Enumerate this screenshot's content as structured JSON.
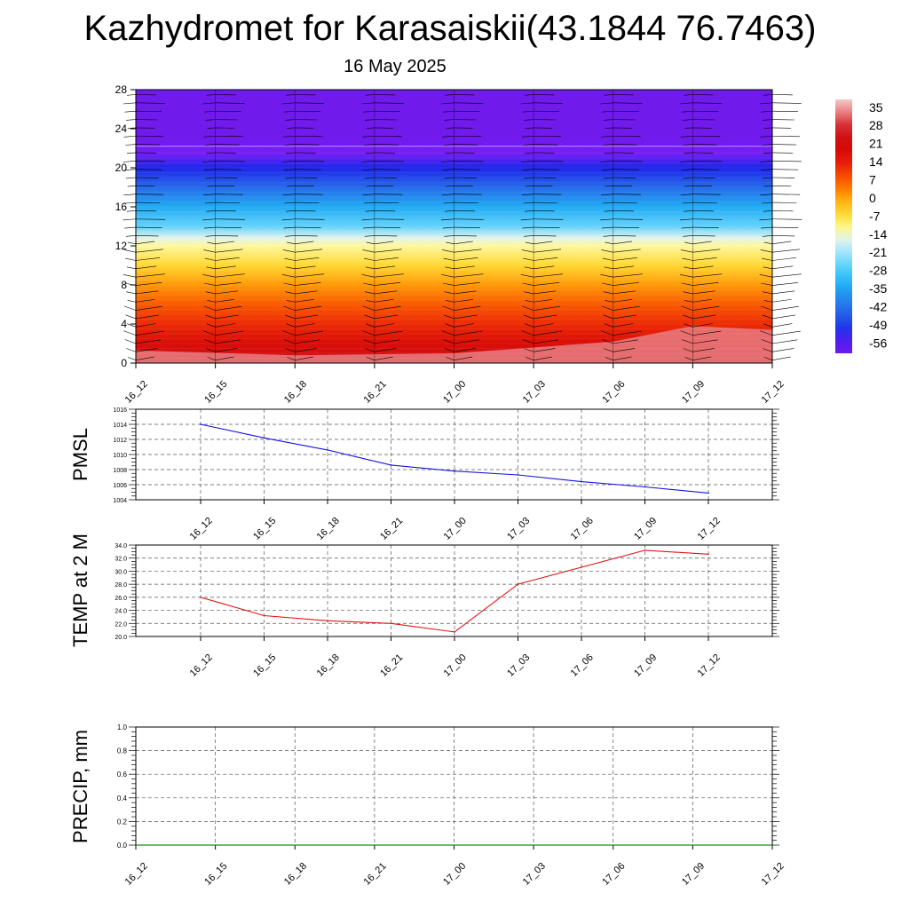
{
  "header": {
    "title": "Kazhydromet for Karasaiskii(43.1844 76.7463)",
    "subtitle": "16 May 2025"
  },
  "chart_data": [
    {
      "type": "heatmap",
      "title": "Kazhydromet for Karasaiskii(43.1844 76.7463)",
      "subtitle": "16 May 2025",
      "x_ticks": [
        "16_12",
        "16_15",
        "16_18",
        "16_21",
        "17_00",
        "17_03",
        "17_06",
        "17_09",
        "17_12"
      ],
      "y_ticks": [
        "0",
        "4",
        "8",
        "12",
        "16",
        "20",
        "24",
        "28"
      ],
      "ylim": [
        0,
        28
      ],
      "colorbar_labels": [
        "35",
        "28",
        "21",
        "14",
        "7",
        "0",
        "-7",
        "-14",
        "-21",
        "-28",
        "-35",
        "-42",
        "-49",
        "-56"
      ],
      "colorbar_range": [
        -60,
        38
      ],
      "overlay": "wind barbs",
      "temperature_profile": [
        {
          "z": 0,
          "t": 25
        },
        {
          "z": 2,
          "t": 18
        },
        {
          "z": 4,
          "t": 12
        },
        {
          "z": 6,
          "t": 7
        },
        {
          "z": 8,
          "t": 1
        },
        {
          "z": 10,
          "t": -6
        },
        {
          "z": 12,
          "t": -12
        },
        {
          "z": 12.8,
          "t": -16
        },
        {
          "z": 14,
          "t": -26
        },
        {
          "z": 16,
          "t": -34
        },
        {
          "z": 18,
          "t": -43
        },
        {
          "z": 20,
          "t": -52
        },
        {
          "z": 21.5,
          "t": -57
        },
        {
          "z": 23,
          "t": -60
        },
        {
          "z": 28,
          "t": -60
        }
      ],
      "surface_warm_layer": [
        {
          "time": "16_12",
          "top": 1.3,
          "t": 29
        },
        {
          "time": "16_18",
          "top": 0.8,
          "t": 27
        },
        {
          "time": "17_00",
          "top": 1.0,
          "t": 27
        },
        {
          "time": "17_06",
          "top": 2.2,
          "t": 30
        },
        {
          "time": "17_09",
          "top": 3.8,
          "t": 33
        },
        {
          "time": "17_12",
          "top": 3.4,
          "t": 33
        }
      ]
    },
    {
      "type": "line",
      "ylabel": "PMSL",
      "x": [
        "16_12",
        "16_15",
        "16_18",
        "16_21",
        "17_00",
        "17_03",
        "17_06",
        "17_09",
        "17_12"
      ],
      "y_ticks": [
        "1004",
        "1006",
        "1008",
        "1010",
        "1012",
        "1014",
        "1016"
      ],
      "ylim": [
        1004,
        1016
      ],
      "grid": true,
      "series": [
        {
          "color": "#1515e0",
          "values": [
            1014.0,
            1012.2,
            1010.6,
            1008.6,
            1007.8,
            1007.3,
            1006.4,
            1005.7,
            1004.9
          ]
        }
      ]
    },
    {
      "type": "line",
      "ylabel": "TEMP at 2 M",
      "x": [
        "16_12",
        "16_15",
        "16_18",
        "16_21",
        "17_00",
        "17_03",
        "17_06",
        "17_09",
        "17_12"
      ],
      "y_ticks": [
        "20.0",
        "22.0",
        "24.0",
        "26.0",
        "28.0",
        "30.0",
        "32.0",
        "34.0"
      ],
      "ylim": [
        20,
        34
      ],
      "grid": true,
      "series": [
        {
          "color": "#e01515",
          "values": [
            26.0,
            23.2,
            22.4,
            22.0,
            20.7,
            28.0,
            30.6,
            33.2,
            32.6
          ]
        }
      ]
    },
    {
      "type": "line",
      "ylabel": "PRECIP, mm",
      "x_ticks": [
        "16_12",
        "16_15",
        "16_18",
        "16_21",
        "17_00",
        "17_03",
        "17_06",
        "17_09",
        "17_12"
      ],
      "y_ticks": [
        "0.0",
        "0.2",
        "0.4",
        "0.6",
        "0.8",
        "1.0"
      ],
      "ylim": [
        0,
        1
      ],
      "grid": true,
      "series": [
        {
          "color": "#1a8a1a",
          "values": [
            0,
            0,
            0,
            0,
            0,
            0,
            0,
            0,
            0
          ]
        }
      ]
    }
  ]
}
